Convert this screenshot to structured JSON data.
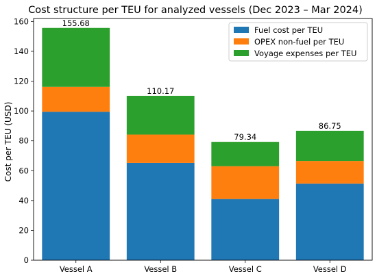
{
  "chart_data": {
    "type": "bar",
    "stacked": true,
    "title": "Cost structure per TEU for analyzed vessels (Dec 2023 – Mar 2024)",
    "xlabel": "",
    "ylabel": "Cost per TEU (USD)",
    "ylim": [
      0,
      162
    ],
    "yticks": [
      0,
      20,
      40,
      60,
      80,
      100,
      120,
      140,
      160
    ],
    "categories": [
      "Vessel A",
      "Vessel B",
      "Vessel C",
      "Vessel D"
    ],
    "series": [
      {
        "name": "Fuel cost per TEU",
        "color": "#1f77b4",
        "values": [
          99.5,
          65.2,
          41.0,
          51.3
        ]
      },
      {
        "name": "OPEX non-fuel per TEU",
        "color": "#ff7f0e",
        "values": [
          16.7,
          19.0,
          22.0,
          15.2
        ]
      },
      {
        "name": "Voyage expenses per TEU",
        "color": "#2ca02c",
        "values": [
          39.48,
          25.97,
          16.34,
          20.25
        ]
      }
    ],
    "totals": [
      "155.68",
      "110.17",
      "79.34",
      "86.75"
    ],
    "legend_position": "top-right",
    "grid": false
  }
}
